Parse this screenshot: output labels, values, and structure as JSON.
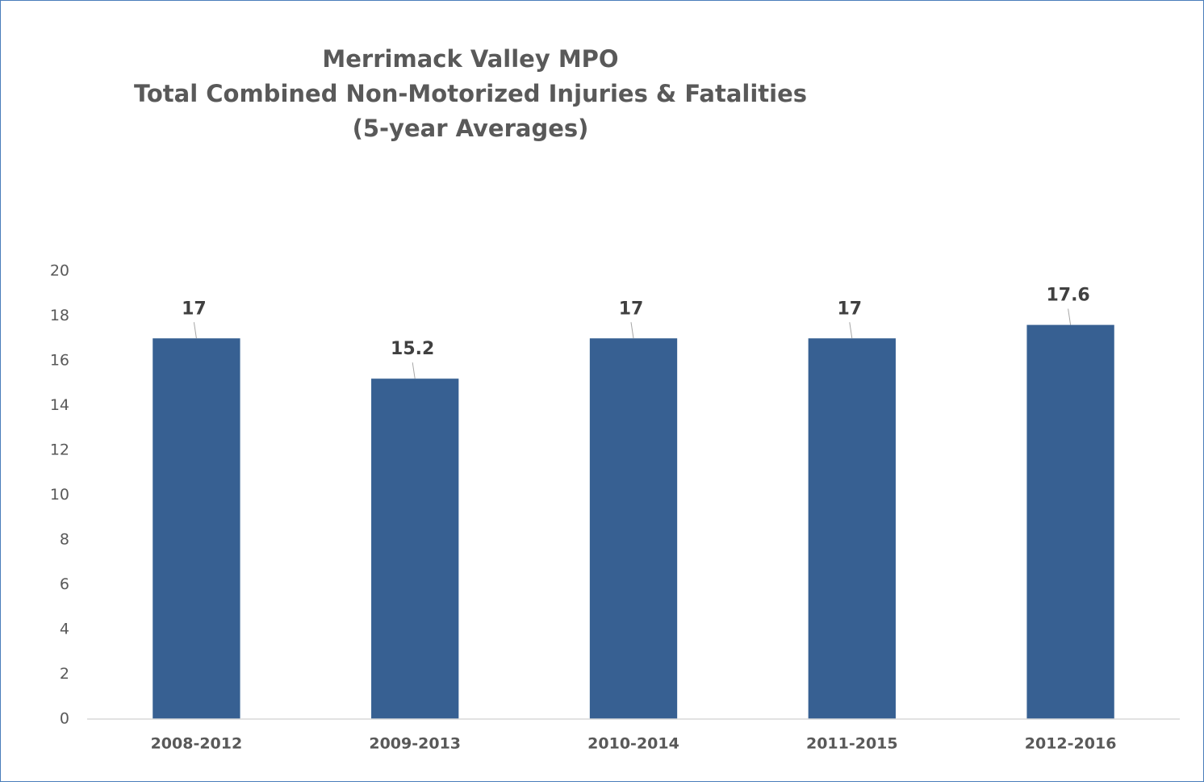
{
  "chart_data": {
    "type": "bar",
    "title": [
      "Merrimack Valley MPO",
      "Total Combined Non-Motorized Injuries & Fatalities",
      "(5-year Averages)"
    ],
    "categories": [
      "2008-2012",
      "2009-2013",
      "2010-2014",
      "2011-2015",
      "2012-2016"
    ],
    "values": [
      17,
      15.2,
      17,
      17,
      17.6
    ],
    "color": "#376092",
    "ylim": [
      0,
      20
    ],
    "yticks": [
      0,
      2,
      4,
      6,
      8,
      10,
      12,
      14,
      16,
      18,
      20
    ],
    "grid": false
  }
}
